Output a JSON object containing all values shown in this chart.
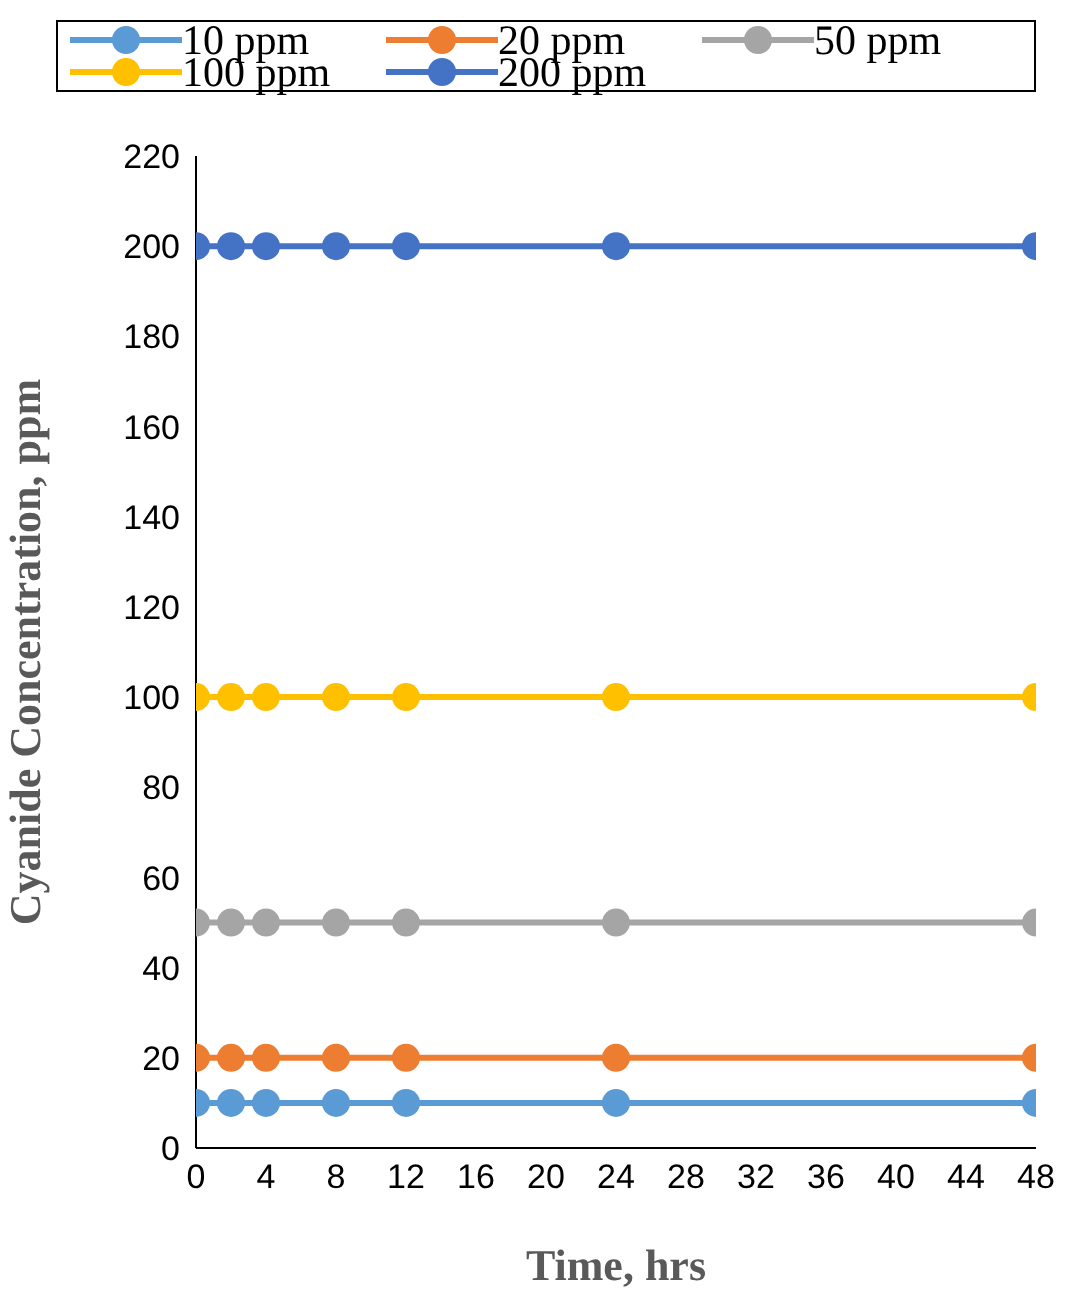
{
  "chart_data": {
    "type": "line",
    "xlabel": "Time, hrs",
    "ylabel": "Cyanide Concentration, ppm",
    "x": [
      0,
      2,
      4,
      8,
      12,
      24,
      48
    ],
    "series": [
      {
        "name": "10 ppm",
        "color": "#5b9bd5",
        "values": [
          10,
          10,
          10,
          10,
          10,
          10,
          10
        ]
      },
      {
        "name": "20 ppm",
        "color": "#ed7d31",
        "values": [
          20,
          20,
          20,
          20,
          20,
          20,
          20
        ]
      },
      {
        "name": "50 ppm",
        "color": "#a5a5a5",
        "values": [
          50,
          50,
          50,
          50,
          50,
          50,
          50
        ]
      },
      {
        "name": "100 ppm",
        "color": "#ffc000",
        "values": [
          100,
          100,
          100,
          100,
          100,
          100,
          100
        ]
      },
      {
        "name": "200 ppm",
        "color": "#4472c4",
        "values": [
          200,
          200,
          200,
          200,
          200,
          200,
          200
        ]
      }
    ],
    "xlim": [
      0,
      48
    ],
    "xticks": [
      0,
      4,
      8,
      12,
      16,
      20,
      24,
      28,
      32,
      36,
      40,
      44,
      48
    ],
    "ylim": [
      0,
      220
    ],
    "yticks": [
      0,
      20,
      40,
      60,
      80,
      100,
      120,
      140,
      160,
      180,
      200,
      220
    ],
    "grid": false,
    "legend": "top",
    "marker": "circle",
    "line_style": "solid"
  }
}
